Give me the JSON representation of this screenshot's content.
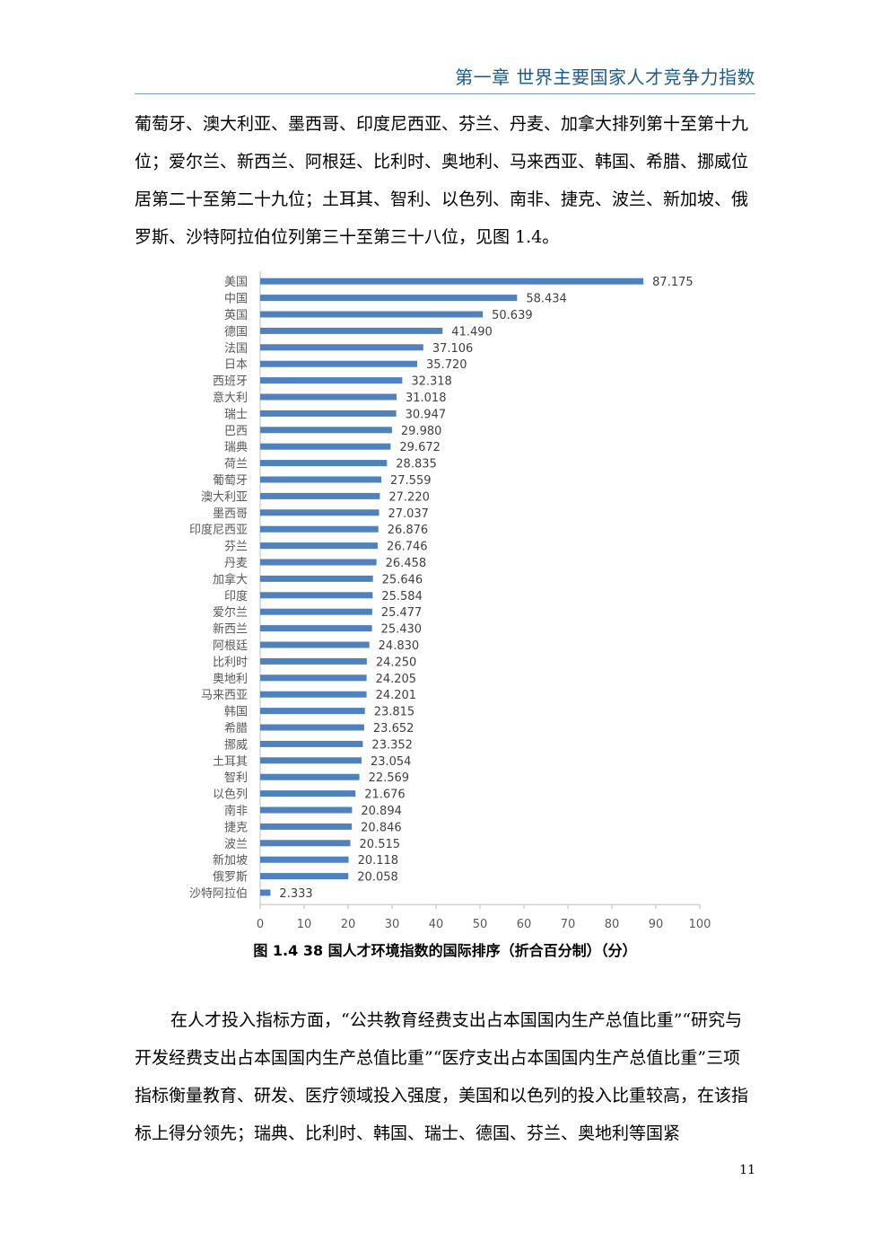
{
  "header": {
    "chapter_title": "第一章  世界主要国家人才竞争力指数"
  },
  "paragraph1": "葡萄牙、澳大利亚、墨西哥、印度尼西亚、芬兰、丹麦、加拿大排列第十至第十九位；爱尔兰、新西兰、阿根廷、比利时、奥地利、马来西亚、韩国、希腊、挪威位居第二十至第二十九位；土耳其、智利、以色列、南非、捷克、波兰、新加坡、俄罗斯、沙特阿拉伯位列第三十至第三十八位，见图 1.4。",
  "caption": "图 1.4   38 国人才环境指数的国际排序（折合百分制）（分）",
  "paragraph2": "在人才投入指标方面，“公共教育经费支出占本国国内生产总值比重”“研究与开发经费支出占本国国内生产总值比重”“医疗支出占本国国内生产总值比重”三项指标衡量教育、研发、医疗领域投入强度，美国和以色列的投入比重较高，在该指标上得分领先；瑞典、比利时、韩国、瑞士、德国、芬兰、奥地利等国紧",
  "page_number": "11",
  "chart_data": {
    "type": "bar",
    "orientation": "horizontal",
    "bar_color": "#4f81bd",
    "xlim": [
      0,
      100
    ],
    "x_ticks": [
      0,
      10,
      20,
      30,
      40,
      50,
      60,
      70,
      80,
      90,
      100
    ],
    "categories": [
      "美国",
      "中国",
      "英国",
      "德国",
      "法国",
      "日本",
      "西班牙",
      "意大利",
      "瑞士",
      "巴西",
      "瑞典",
      "荷兰",
      "葡萄牙",
      "澳大利亚",
      "墨西哥",
      "印度尼西亚",
      "芬兰",
      "丹麦",
      "加拿大",
      "印度",
      "爱尔兰",
      "新西兰",
      "阿根廷",
      "比利时",
      "奥地利",
      "马来西亚",
      "韩国",
      "希腊",
      "挪威",
      "土耳其",
      "智利",
      "以色列",
      "南非",
      "捷克",
      "波兰",
      "新加坡",
      "俄罗斯",
      "沙特阿拉伯"
    ],
    "values": [
      87.175,
      58.434,
      50.639,
      41.49,
      37.106,
      35.72,
      32.318,
      31.018,
      30.947,
      29.98,
      29.672,
      28.835,
      27.559,
      27.22,
      27.037,
      26.876,
      26.746,
      26.458,
      25.646,
      25.584,
      25.477,
      25.43,
      24.83,
      24.25,
      24.205,
      24.201,
      23.815,
      23.652,
      23.352,
      23.054,
      22.569,
      21.676,
      20.894,
      20.846,
      20.515,
      20.118,
      20.058,
      2.333
    ],
    "value_labels": [
      "87.175",
      "58.434",
      "50.639",
      "41.490",
      "37.106",
      "35.720",
      "32.318",
      "31.018",
      "30.947",
      "29.980",
      "29.672",
      "28.835",
      "27.559",
      "27.220",
      "27.037",
      "26.876",
      "26.746",
      "26.458",
      "25.646",
      "25.584",
      "25.477",
      "25.430",
      "24.830",
      "24.250",
      "24.205",
      "24.201",
      "23.815",
      "23.652",
      "23.352",
      "23.054",
      "22.569",
      "21.676",
      "20.894",
      "20.846",
      "20.515",
      "20.118",
      "20.058",
      "2.333"
    ],
    "grid": false,
    "legend": "none"
  }
}
